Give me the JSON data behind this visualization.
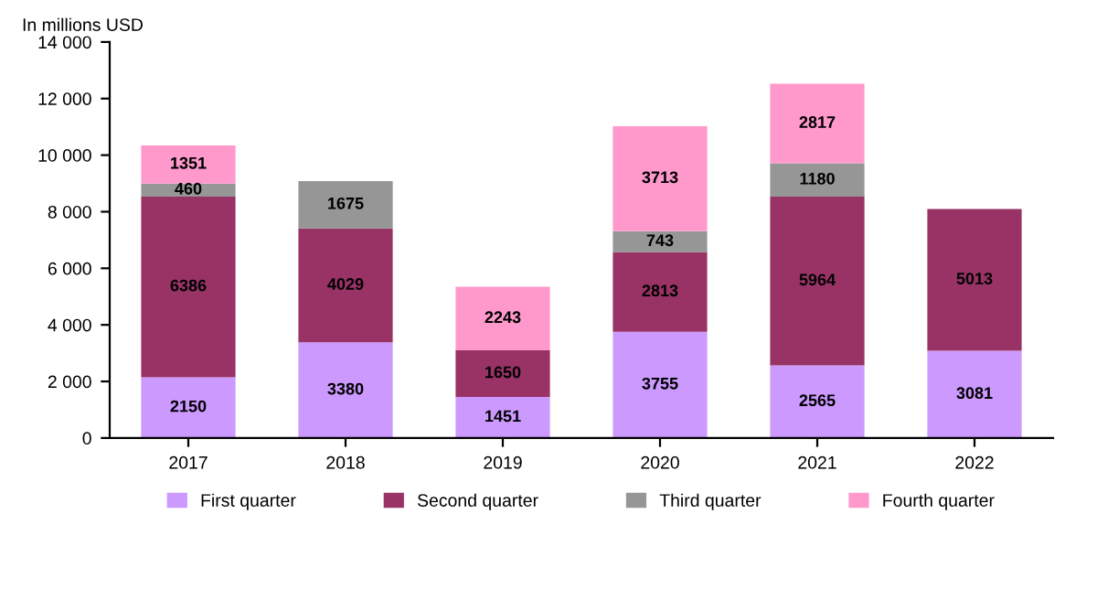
{
  "chart_data": {
    "type": "bar",
    "stacked": true,
    "ylabel": "In millions USD",
    "categories": [
      "2017",
      "2018",
      "2019",
      "2020",
      "2021",
      "2022"
    ],
    "series": [
      {
        "name": "First quarter",
        "color": "#cc99ff",
        "values": [
          2150,
          3380,
          1451,
          3755,
          2565,
          3081
        ]
      },
      {
        "name": "Second quarter",
        "color": "#993366",
        "values": [
          6386,
          4029,
          1650,
          2813,
          5964,
          5013
        ]
      },
      {
        "name": "Third quarter",
        "color": "#969696",
        "values": [
          460,
          1675,
          null,
          743,
          1180,
          null
        ]
      },
      {
        "name": "Fourth quarter",
        "color": "#ff99cc",
        "values": [
          1351,
          null,
          2243,
          3713,
          2817,
          null
        ]
      }
    ],
    "ylim": [
      0,
      14000
    ],
    "yticks": [
      0,
      {
        "value": 2000,
        "label": "2 000"
      },
      {
        "value": 4000,
        "label": "4 000"
      },
      {
        "value": 6000,
        "label": "6 000"
      },
      {
        "value": 8000,
        "label": "8 000"
      },
      {
        "value": 10000,
        "label": "10 000"
      },
      {
        "value": 12000,
        "label": "12 000"
      },
      {
        "value": 14000,
        "label": "14 000"
      }
    ],
    "data_labels": true,
    "grid": false,
    "legend": "bottom"
  }
}
